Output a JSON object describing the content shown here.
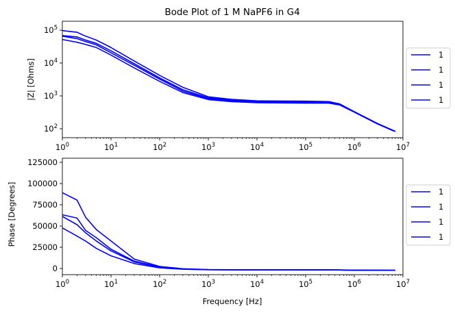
{
  "chart_data": {
    "title": "Bode Plot of 1 M NaPF6 in G4",
    "color": "#0000ff",
    "x": [
      1,
      2,
      3,
      5,
      10,
      30,
      100,
      300,
      1000,
      3000,
      10000,
      100000,
      300000,
      500000,
      1000000,
      3000000,
      6000000,
      7000000
    ],
    "panels": [
      {
        "type": "line",
        "ylabel": "|Z| [Ohms]",
        "xscale": "log",
        "yscale": "log",
        "xlim": [
          1,
          10000000
        ],
        "ylim": [
          65,
          180000
        ],
        "x_ticks": [
          "10^0",
          "10^1",
          "10^2",
          "10^3",
          "10^4",
          "10^5",
          "10^6",
          "10^7"
        ],
        "y_ticks": [
          "10^2",
          "10^3",
          "10^4",
          "10^5"
        ],
        "legend": "right, outside",
        "grid": false,
        "series": [
          {
            "name": "1",
            "values": [
              95000,
              85000,
              65000,
              50000,
              30000,
              12000,
              4500,
              2000,
              1050,
              880,
              800,
              780,
              760,
              650,
              380,
              170,
              110,
              100
            ]
          },
          {
            "name": "1",
            "values": [
              68000,
              62000,
              50000,
              40000,
              24000,
              10000,
              3800,
              1700,
              980,
              830,
              760,
              740,
              720,
              630,
              380,
              170,
              110,
              100
            ]
          },
          {
            "name": "1",
            "values": [
              65000,
              55000,
              45000,
              36000,
              21000,
              9000,
              3500,
              1550,
              920,
              790,
              730,
              710,
              700,
              620,
              370,
              168,
              108,
              100
            ]
          },
          {
            "name": "1",
            "values": [
              52000,
              43000,
              37000,
              30000,
              18000,
              7500,
              3000,
              1400,
              870,
              750,
              700,
              680,
              680,
              600,
              370,
              165,
              107,
              100
            ]
          }
        ]
      },
      {
        "type": "line",
        "ylabel": "Phase [Degrees]",
        "xlabel": "Frequency [Hz]",
        "xscale": "log",
        "yscale": "linear",
        "xlim": [
          1,
          10000000
        ],
        "ylim": [
          -5000,
          137000
        ],
        "x_ticks": [
          "10^0",
          "10^1",
          "10^2",
          "10^3",
          "10^4",
          "10^5",
          "10^6",
          "10^7"
        ],
        "y_ticks": [
          "0",
          "25000",
          "50000",
          "75000",
          "100000",
          "125000"
        ],
        "legend": "right, outside",
        "grid": false,
        "series": [
          {
            "name": "1",
            "values": [
              95000,
              86000,
              65000,
              50000,
              36000,
              14000,
              5000,
              2200,
              1200,
              1000,
              900,
              850,
              800,
              700,
              500,
              350,
              300,
              280
            ]
          },
          {
            "name": "1",
            "values": [
              68000,
              64000,
              49000,
              40000,
              26000,
              11500,
              4300,
              2000,
              1100,
              950,
              850,
              800,
              780,
              680,
              480,
              340,
              290,
              270
            ]
          },
          {
            "name": "1",
            "values": [
              66000,
              56000,
              46000,
              36000,
              24000,
              10500,
              4000,
              1800,
              1050,
              900,
              820,
              790,
              760,
              670,
              470,
              330,
              285,
              265
            ]
          },
          {
            "name": "1",
            "values": [
              52000,
              42000,
              36000,
              27000,
              18000,
              8500,
              3300,
              1600,
              1000,
              860,
              800,
              770,
              750,
              660,
              460,
              320,
              280,
              260
            ]
          }
        ]
      }
    ]
  }
}
